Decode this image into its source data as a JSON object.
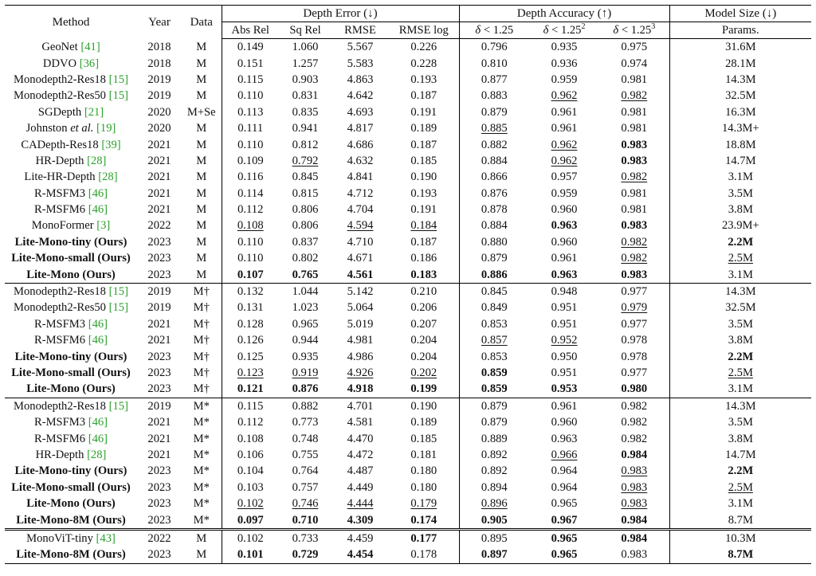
{
  "header": {
    "method": "Method",
    "year": "Year",
    "data": "Data",
    "groups": [
      "Depth Error (↓)",
      "Depth Accuracy (↑)",
      "Model Size (↓)"
    ],
    "metrics": [
      "Abs Rel",
      "Sq Rel",
      "RMSE",
      "RMSE log",
      "Params."
    ],
    "delta_symbol": "δ",
    "delta_labels": [
      "< 1.25",
      "< 1.25",
      "< 1.25"
    ],
    "delta_exps": [
      "",
      "2",
      "3"
    ]
  },
  "sections": [
    {
      "separator": "none",
      "rows": [
        {
          "method": "GeoNet",
          "cite": "[41]",
          "year": "2018",
          "data": "M",
          "values": [
            "0.149",
            "1.060",
            "5.567",
            "0.226",
            "0.796",
            "0.935",
            "0.975",
            "31.6M"
          ]
        },
        {
          "method": "DDVO",
          "cite": "[36]",
          "year": "2018",
          "data": "M",
          "values": [
            "0.151",
            "1.257",
            "5.583",
            "0.228",
            "0.810",
            "0.936",
            "0.974",
            "28.1M"
          ]
        },
        {
          "method": "Monodepth2-Res18",
          "cite": "[15]",
          "year": "2019",
          "data": "M",
          "values": [
            "0.115",
            "0.903",
            "4.863",
            "0.193",
            "0.877",
            "0.959",
            "0.981",
            "14.3M"
          ]
        },
        {
          "method": "Monodepth2-Res50",
          "cite": "[15]",
          "year": "2019",
          "data": "M",
          "values": [
            "0.110",
            "0.831",
            "4.642",
            "0.187",
            "0.883",
            "0.962",
            "0.982",
            "32.5M"
          ],
          "underline": [
            5,
            6
          ]
        },
        {
          "method": "SGDepth",
          "cite": "[21]",
          "year": "2020",
          "data": "M+Se",
          "values": [
            "0.113",
            "0.835",
            "4.693",
            "0.191",
            "0.879",
            "0.961",
            "0.981",
            "16.3M"
          ]
        },
        {
          "method": "Johnston",
          "method_italic": "et al.",
          "cite": "[19]",
          "year": "2020",
          "data": "M",
          "values": [
            "0.111",
            "0.941",
            "4.817",
            "0.189",
            "0.885",
            "0.961",
            "0.981",
            "14.3M+"
          ],
          "underline": [
            4
          ]
        },
        {
          "method": "CADepth-Res18",
          "cite": "[39]",
          "year": "2021",
          "data": "M",
          "values": [
            "0.110",
            "0.812",
            "4.686",
            "0.187",
            "0.882",
            "0.962",
            "0.983",
            "18.8M"
          ],
          "underline": [
            5
          ],
          "bold": [
            6
          ]
        },
        {
          "method": "HR-Depth",
          "cite": "[28]",
          "year": "2021",
          "data": "M",
          "values": [
            "0.109",
            "0.792",
            "4.632",
            "0.185",
            "0.884",
            "0.962",
            "0.983",
            "14.7M"
          ],
          "underline": [
            1,
            5
          ],
          "bold": [
            6
          ]
        },
        {
          "method": "Lite-HR-Depth",
          "cite": "[28]",
          "year": "2021",
          "data": "M",
          "values": [
            "0.116",
            "0.845",
            "4.841",
            "0.190",
            "0.866",
            "0.957",
            "0.982",
            "3.1M"
          ],
          "underline": [
            6
          ]
        },
        {
          "method": "R-MSFM3",
          "cite": "[46]",
          "year": "2021",
          "data": "M",
          "values": [
            "0.114",
            "0.815",
            "4.712",
            "0.193",
            "0.876",
            "0.959",
            "0.981",
            "3.5M"
          ]
        },
        {
          "method": "R-MSFM6",
          "cite": "[46]",
          "year": "2021",
          "data": "M",
          "values": [
            "0.112",
            "0.806",
            "4.704",
            "0.191",
            "0.878",
            "0.960",
            "0.981",
            "3.8M"
          ]
        },
        {
          "method": "MonoFormer",
          "cite": "[3]",
          "year": "2022",
          "data": "M",
          "values": [
            "0.108",
            "0.806",
            "4.594",
            "0.184",
            "0.884",
            "0.963",
            "0.983",
            "23.9M+"
          ],
          "underline": [
            0,
            2,
            3
          ],
          "bold": [
            5,
            6
          ]
        },
        {
          "method": "Lite-Mono-tiny (Ours)",
          "method_bold": true,
          "year": "2023",
          "data": "M",
          "values": [
            "0.110",
            "0.837",
            "4.710",
            "0.187",
            "0.880",
            "0.960",
            "0.982",
            "2.2M"
          ],
          "underline": [
            6
          ],
          "bold": [
            7
          ]
        },
        {
          "method": "Lite-Mono-small (Ours)",
          "method_bold": true,
          "year": "2023",
          "data": "M",
          "values": [
            "0.110",
            "0.802",
            "4.671",
            "0.186",
            "0.879",
            "0.961",
            "0.982",
            "2.5M"
          ],
          "underline": [
            6,
            7
          ]
        },
        {
          "method": "Lite-Mono (Ours)",
          "method_bold": true,
          "year": "2023",
          "data": "M",
          "values": [
            "0.107",
            "0.765",
            "4.561",
            "0.183",
            "0.886",
            "0.963",
            "0.983",
            "3.1M"
          ],
          "bold": [
            0,
            1,
            2,
            3,
            4,
            5,
            6
          ]
        }
      ]
    },
    {
      "separator": "single",
      "rows": [
        {
          "method": "Monodepth2-Res18",
          "cite": "[15]",
          "year": "2019",
          "data": "M†",
          "values": [
            "0.132",
            "1.044",
            "5.142",
            "0.210",
            "0.845",
            "0.948",
            "0.977",
            "14.3M"
          ]
        },
        {
          "method": "Monodepth2-Res50",
          "cite": "[15]",
          "year": "2019",
          "data": "M†",
          "values": [
            "0.131",
            "1.023",
            "5.064",
            "0.206",
            "0.849",
            "0.951",
            "0.979",
            "32.5M"
          ],
          "underline": [
            6
          ]
        },
        {
          "method": "R-MSFM3",
          "cite": "[46]",
          "year": "2021",
          "data": "M†",
          "values": [
            "0.128",
            "0.965",
            "5.019",
            "0.207",
            "0.853",
            "0.951",
            "0.977",
            "3.5M"
          ]
        },
        {
          "method": "R-MSFM6",
          "cite": "[46]",
          "year": "2021",
          "data": "M†",
          "values": [
            "0.126",
            "0.944",
            "4.981",
            "0.204",
            "0.857",
            "0.952",
            "0.978",
            "3.8M"
          ],
          "underline": [
            4,
            5
          ]
        },
        {
          "method": "Lite-Mono-tiny (Ours)",
          "method_bold": true,
          "year": "2023",
          "data": "M†",
          "values": [
            "0.125",
            "0.935",
            "4.986",
            "0.204",
            "0.853",
            "0.950",
            "0.978",
            "2.2M"
          ],
          "bold": [
            7
          ]
        },
        {
          "method": "Lite-Mono-small (Ours)",
          "method_bold": true,
          "year": "2023",
          "data": "M†",
          "values": [
            "0.123",
            "0.919",
            "4.926",
            "0.202",
            "0.859",
            "0.951",
            "0.977",
            "2.5M"
          ],
          "underline": [
            0,
            1,
            2,
            3,
            7
          ],
          "bold": [
            4
          ]
        },
        {
          "method": "Lite-Mono (Ours)",
          "method_bold": true,
          "year": "2023",
          "data": "M†",
          "values": [
            "0.121",
            "0.876",
            "4.918",
            "0.199",
            "0.859",
            "0.953",
            "0.980",
            "3.1M"
          ],
          "bold": [
            0,
            1,
            2,
            3,
            4,
            5,
            6
          ]
        }
      ]
    },
    {
      "separator": "single",
      "rows": [
        {
          "method": "Monodepth2-Res18",
          "cite": "[15]",
          "year": "2019",
          "data": "M*",
          "values": [
            "0.115",
            "0.882",
            "4.701",
            "0.190",
            "0.879",
            "0.961",
            "0.982",
            "14.3M"
          ]
        },
        {
          "method": "R-MSFM3",
          "cite": "[46]",
          "year": "2021",
          "data": "M*",
          "values": [
            "0.112",
            "0.773",
            "4.581",
            "0.189",
            "0.879",
            "0.960",
            "0.982",
            "3.5M"
          ]
        },
        {
          "method": "R-MSFM6",
          "cite": "[46]",
          "year": "2021",
          "data": "M*",
          "values": [
            "0.108",
            "0.748",
            "4.470",
            "0.185",
            "0.889",
            "0.963",
            "0.982",
            "3.8M"
          ]
        },
        {
          "method": "HR-Depth",
          "cite": "[28]",
          "year": "2021",
          "data": "M*",
          "values": [
            "0.106",
            "0.755",
            "4.472",
            "0.181",
            "0.892",
            "0.966",
            "0.984",
            "14.7M"
          ],
          "underline": [
            5
          ],
          "bold": [
            6
          ]
        },
        {
          "method": "Lite-Mono-tiny (Ours)",
          "method_bold": true,
          "year": "2023",
          "data": "M*",
          "values": [
            "0.104",
            "0.764",
            "4.487",
            "0.180",
            "0.892",
            "0.964",
            "0.983",
            "2.2M"
          ],
          "underline": [
            6
          ],
          "bold": [
            7
          ]
        },
        {
          "method": "Lite-Mono-small (Ours)",
          "method_bold": true,
          "year": "2023",
          "data": "M*",
          "values": [
            "0.103",
            "0.757",
            "4.449",
            "0.180",
            "0.894",
            "0.964",
            "0.983",
            "2.5M"
          ],
          "underline": [
            6,
            7
          ]
        },
        {
          "method": "Lite-Mono (Ours)",
          "method_bold": true,
          "year": "2023",
          "data": "M*",
          "values": [
            "0.102",
            "0.746",
            "4.444",
            "0.179",
            "0.896",
            "0.965",
            "0.983",
            "3.1M"
          ],
          "underline": [
            0,
            1,
            2,
            3,
            4,
            6
          ]
        },
        {
          "method": "Lite-Mono-8M (Ours)",
          "method_bold": true,
          "year": "2023",
          "data": "M*",
          "values": [
            "0.097",
            "0.710",
            "4.309",
            "0.174",
            "0.905",
            "0.967",
            "0.984",
            "8.7M"
          ],
          "bold": [
            0,
            1,
            2,
            3,
            4,
            5,
            6
          ]
        }
      ]
    },
    {
      "separator": "double",
      "rows": [
        {
          "method": "MonoViT-tiny",
          "cite": "[43]",
          "year": "2022",
          "data": "M",
          "values": [
            "0.102",
            "0.733",
            "4.459",
            "0.177",
            "0.895",
            "0.965",
            "0.984",
            "10.3M"
          ],
          "bold": [
            3,
            5,
            6
          ]
        },
        {
          "method": "Lite-Mono-8M (Ours)",
          "method_bold": true,
          "year": "2023",
          "data": "M",
          "values": [
            "0.101",
            "0.729",
            "4.454",
            "0.178",
            "0.897",
            "0.965",
            "0.983",
            "8.7M"
          ],
          "bold": [
            0,
            1,
            2,
            4,
            5,
            7
          ]
        }
      ]
    }
  ]
}
